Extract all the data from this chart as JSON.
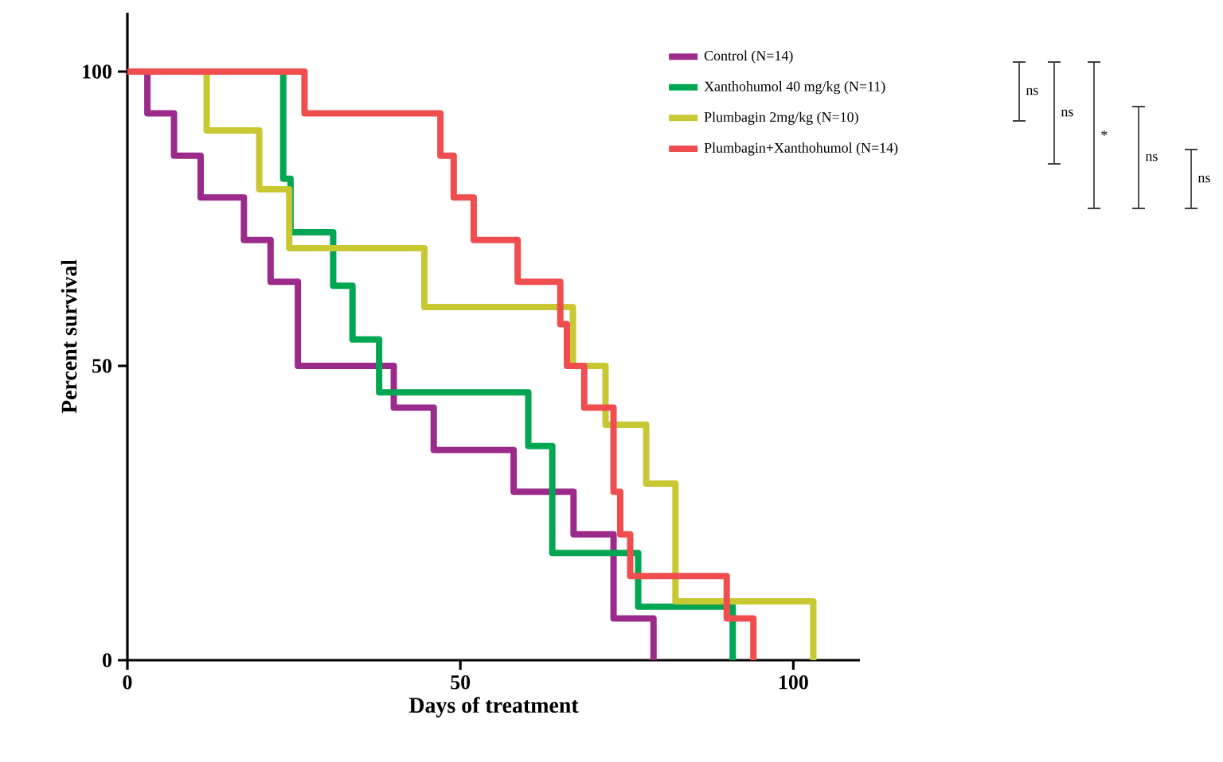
{
  "chart_data": {
    "type": "step",
    "xlabel": "Days of treatment",
    "ylabel": "Percent survival",
    "xlim": [
      0,
      110
    ],
    "ylim": [
      0,
      110
    ],
    "xticks": [
      0,
      50,
      100
    ],
    "yticks": [
      0,
      50,
      100
    ],
    "legend": "top right",
    "marker": "none",
    "line_style": "solid",
    "grid": false,
    "series": [
      {
        "name": "Control (N=14)",
        "color": "#9b2a8a",
        "x": [
          0,
          3,
          7,
          11,
          17.5,
          21.5,
          25.6,
          40,
          46,
          58,
          67,
          73,
          79
        ],
        "values": [
          100,
          92.9,
          85.7,
          78.6,
          71.4,
          64.3,
          50,
          42.9,
          35.7,
          28.6,
          21.4,
          7.1,
          0
        ]
      },
      {
        "name": "Xanthohumol 40 mg/kg (N=11)",
        "color": "#00a651",
        "x": [
          0,
          23.4,
          24.5,
          30.9,
          33.8,
          37.8,
          60.2,
          63.8,
          76.7,
          90.9
        ],
        "values": [
          100,
          81.8,
          72.7,
          63.6,
          54.5,
          45.5,
          36.4,
          18.2,
          9.1,
          0
        ]
      },
      {
        "name": "Plumbagin 2mg/kg (N=10)",
        "color": "#c8c832",
        "x": [
          0,
          11.9,
          19.8,
          24.3,
          44.6,
          66.9,
          71.8,
          77.9,
          82.3,
          103
        ],
        "values": [
          100,
          90,
          80,
          70,
          60,
          50,
          40,
          30,
          10,
          0
        ]
      },
      {
        "name": "Plumbagin+Xanthohumol (N=14)",
        "color": "#f04e4e",
        "x": [
          0,
          26.6,
          47,
          49,
          52,
          58.6,
          65,
          66,
          68.6,
          73,
          74,
          75.5,
          90,
          94
        ],
        "values": [
          100,
          92.9,
          85.7,
          78.6,
          71.4,
          64.3,
          57.1,
          50,
          42.9,
          28.6,
          21.4,
          14.3,
          7.1,
          0
        ]
      }
    ],
    "annotations": [
      "ns",
      "ns",
      "*",
      "ns",
      "ns"
    ]
  }
}
